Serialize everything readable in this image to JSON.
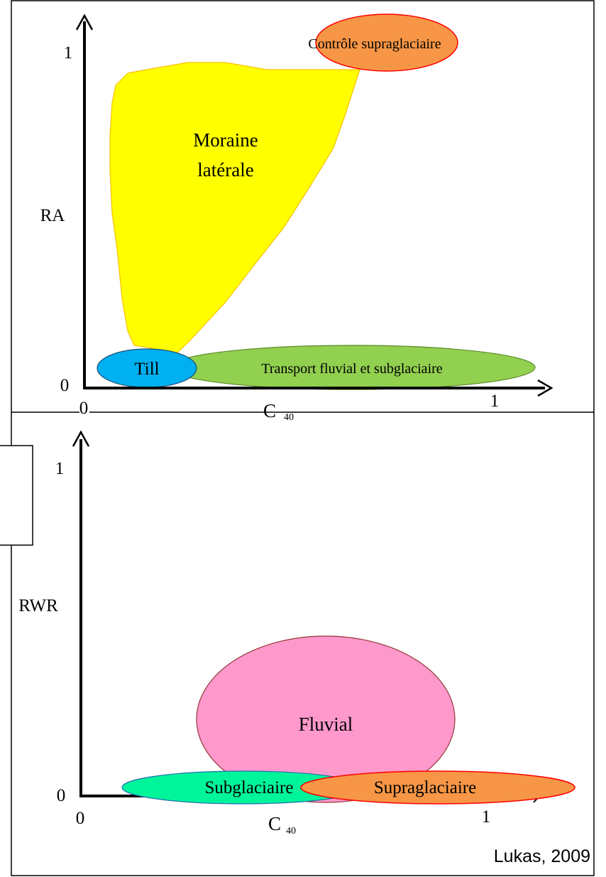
{
  "panels": {
    "top": {
      "y_axis_label": "RA",
      "x_axis_label": "C",
      "x_axis_subscript": "40",
      "tick_0_y": "0",
      "tick_1_y": "1",
      "tick_0_x": "0",
      "tick_1_x": "1",
      "zones": {
        "moraine": {
          "line1": "Moraine",
          "line2": "latérale",
          "color": "#ffff00"
        },
        "controle": {
          "label": "Contrôle supraglaciaire",
          "color": "#f79646"
        },
        "till": {
          "label": "Till",
          "color": "#00b0f0"
        },
        "transport": {
          "label": "Transport fluvial et subglaciaire",
          "color": "#92d050"
        }
      }
    },
    "bottom": {
      "y_axis_label": "RWR",
      "x_axis_label": "C",
      "x_axis_subscript": "40",
      "tick_0_y": "0",
      "tick_1_y": "1",
      "tick_0_x": "0",
      "tick_1_x": "1",
      "zones": {
        "fluvial": {
          "label": "Fluvial",
          "color": "#ff99cc"
        },
        "subglaciaire": {
          "label": "Subglaciaire",
          "color": "#00f59a"
        },
        "supraglaciaire": {
          "label": "Supraglaciaire",
          "color": "#f79646"
        }
      }
    }
  },
  "credit": "Lukas, 2009"
}
